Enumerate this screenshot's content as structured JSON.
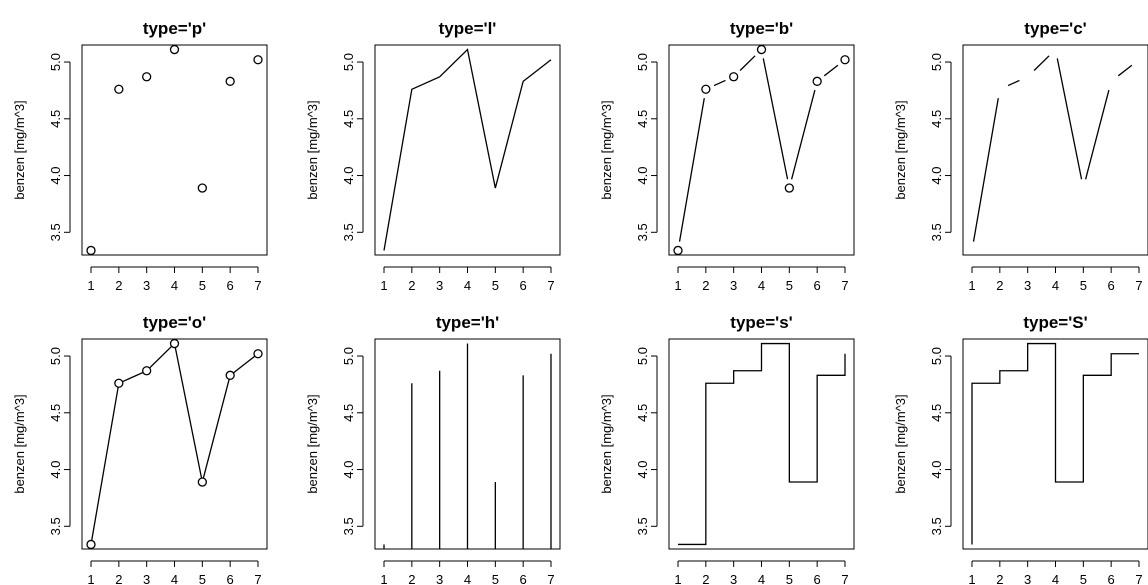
{
  "figure": {
    "ylabel": "benzen [mg/m^3]",
    "x_ticks": [
      "1",
      "2",
      "3",
      "4",
      "5",
      "6",
      "7"
    ],
    "y_ticks": [
      "3.5",
      "4.0",
      "4.5",
      "5.0"
    ]
  },
  "chart_data": [
    {
      "type": "scatter",
      "title": "type='p'",
      "plot_type": "p",
      "x": [
        1,
        2,
        3,
        4,
        5,
        6,
        7
      ],
      "values": [
        3.34,
        4.76,
        4.87,
        5.11,
        3.89,
        4.83,
        5.02
      ],
      "ylabel": "benzen [mg/m^3]",
      "ylim": [
        3.3,
        5.15
      ],
      "xlim": [
        1,
        7
      ]
    },
    {
      "type": "line",
      "title": "type='l'",
      "plot_type": "l",
      "x": [
        1,
        2,
        3,
        4,
        5,
        6,
        7
      ],
      "values": [
        3.34,
        4.76,
        4.87,
        5.11,
        3.89,
        4.83,
        5.02
      ],
      "ylabel": "benzen [mg/m^3]",
      "ylim": [
        3.3,
        5.15
      ],
      "xlim": [
        1,
        7
      ]
    },
    {
      "type": "line",
      "title": "type='b'",
      "plot_type": "b",
      "x": [
        1,
        2,
        3,
        4,
        5,
        6,
        7
      ],
      "values": [
        3.34,
        4.76,
        4.87,
        5.11,
        3.89,
        4.83,
        5.02
      ],
      "ylabel": "benzen [mg/m^3]",
      "ylim": [
        3.3,
        5.15
      ],
      "xlim": [
        1,
        7
      ]
    },
    {
      "type": "line",
      "title": "type='c'",
      "plot_type": "c",
      "x": [
        1,
        2,
        3,
        4,
        5,
        6,
        7
      ],
      "values": [
        3.34,
        4.76,
        4.87,
        5.11,
        3.89,
        4.83,
        5.02
      ],
      "ylabel": "benzen [mg/m^3]",
      "ylim": [
        3.3,
        5.15
      ],
      "xlim": [
        1,
        7
      ]
    },
    {
      "type": "line",
      "title": "type='o'",
      "plot_type": "o",
      "x": [
        1,
        2,
        3,
        4,
        5,
        6,
        7
      ],
      "values": [
        3.34,
        4.76,
        4.87,
        5.11,
        3.89,
        4.83,
        5.02
      ],
      "ylabel": "benzen [mg/m^3]",
      "ylim": [
        3.3,
        5.15
      ],
      "xlim": [
        1,
        7
      ]
    },
    {
      "type": "bar",
      "title": "type='h'",
      "plot_type": "h",
      "x": [
        1,
        2,
        3,
        4,
        5,
        6,
        7
      ],
      "values": [
        3.34,
        4.76,
        4.87,
        5.11,
        3.89,
        4.83,
        5.02
      ],
      "ylabel": "benzen [mg/m^3]",
      "ylim": [
        3.3,
        5.15
      ],
      "xlim": [
        1,
        7
      ]
    },
    {
      "type": "line",
      "title": "type='s'",
      "plot_type": "s",
      "x": [
        1,
        2,
        3,
        4,
        5,
        6,
        7
      ],
      "values": [
        3.34,
        4.76,
        4.87,
        5.11,
        3.89,
        4.83,
        5.02
      ],
      "ylabel": "benzen [mg/m^3]",
      "ylim": [
        3.3,
        5.15
      ],
      "xlim": [
        1,
        7
      ]
    },
    {
      "type": "line",
      "title": "type='S'",
      "plot_type": "S",
      "x": [
        1,
        2,
        3,
        4,
        5,
        6,
        7
      ],
      "values": [
        3.34,
        4.76,
        4.87,
        5.11,
        3.89,
        4.83,
        5.02
      ],
      "ylabel": "benzen [mg/m^3]",
      "ylim": [
        3.3,
        5.15
      ],
      "xlim": [
        1,
        7
      ]
    }
  ]
}
